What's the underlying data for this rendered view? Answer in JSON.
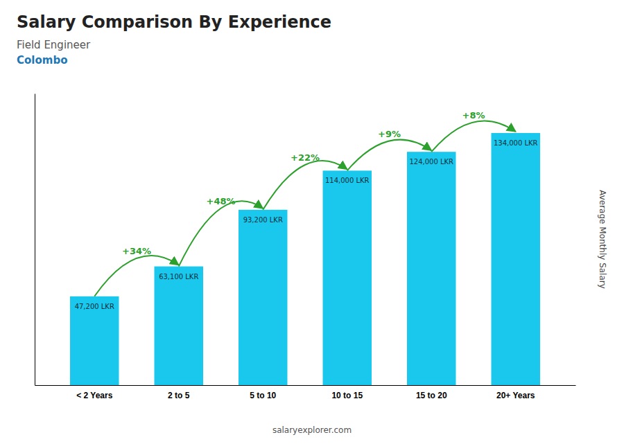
{
  "chart_data": {
    "type": "bar",
    "title": "Salary Comparison By Experience",
    "subtitle": [
      "Field Engineer",
      "Colombo"
    ],
    "ylabel": "Average Monthly Salary",
    "categories": [
      "< 2 Years",
      "2 to 5",
      "5 to 10",
      "10 to 15",
      "15 to 20",
      "20+ Years"
    ],
    "values": [
      47200,
      63100,
      93200,
      114000,
      124000,
      134000
    ],
    "value_labels": [
      "47,200 LKR",
      "63,100 LKR",
      "93,200 LKR",
      "114,000 LKR",
      "124,000 LKR",
      "134,000 LKR"
    ],
    "data_labels": true,
    "color": "#1ac8ed",
    "ylim": [
      0,
      155000
    ],
    "tick_labels": "x",
    "grid": false,
    "annotations": [
      "+34%",
      "+48%",
      "+22%",
      "+9%",
      "+8%",
      "salaryexplorer.com"
    ]
  }
}
